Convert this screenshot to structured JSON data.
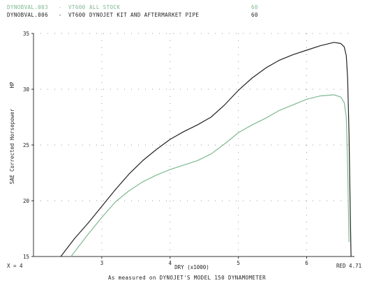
{
  "legend": [
    {
      "file": "DYNOBVAL.003",
      "sep": "-",
      "model": "VT600",
      "desc": "ALL STOCK",
      "code": "60",
      "color": "#7fb892"
    },
    {
      "file": "DYNOBVAL.006",
      "sep": "-",
      "model": "VT600",
      "desc": "DYNOJET KIT AND AFTERMARKET PIPE",
      "code": "60",
      "color": "#222222"
    }
  ],
  "footer": "As measured on DYNOJET'S MODEL 150 DYNAMOMETER",
  "colors": {
    "axis": "#333333",
    "grid": "#9a9a9a",
    "bg": "#ffffff"
  },
  "chart_data": {
    "type": "line",
    "xlabel": "DRY (x1000)",
    "ylabel": "SAE Corrected Horsepower",
    "y_unit_marker": "HP",
    "x_start_label": "X = 4",
    "x_end_label": "RED 4.71",
    "xlim": [
      2,
      6.7
    ],
    "ylim": [
      15,
      35
    ],
    "xticks": [
      3,
      4,
      5,
      6
    ],
    "yticks": [
      15,
      20,
      25,
      30,
      35
    ],
    "grid": true,
    "series": [
      {
        "name": "DYNOBVAL.003 - VT600 ALL STOCK",
        "color": "#7fb892",
        "x": [
          2.55,
          2.8,
          3.0,
          3.2,
          3.4,
          3.6,
          3.8,
          4.0,
          4.2,
          4.4,
          4.6,
          4.8,
          5.0,
          5.2,
          5.4,
          5.6,
          5.8,
          6.0,
          6.2,
          6.4,
          6.5,
          6.55,
          6.58,
          6.6,
          6.62
        ],
        "y": [
          15.0,
          17.0,
          18.5,
          19.9,
          20.9,
          21.7,
          22.3,
          22.8,
          23.2,
          23.6,
          24.2,
          25.1,
          26.1,
          26.8,
          27.4,
          28.1,
          28.6,
          29.1,
          29.4,
          29.5,
          29.3,
          28.8,
          27.5,
          23.0,
          16.3
        ]
      },
      {
        "name": "DYNOBVAL.006 - VT600 DYNOJET KIT AND AFTERMARKET PIPE",
        "color": "#222222",
        "x": [
          2.4,
          2.6,
          2.8,
          3.0,
          3.2,
          3.4,
          3.6,
          3.8,
          4.0,
          4.2,
          4.4,
          4.6,
          4.8,
          5.0,
          5.2,
          5.4,
          5.6,
          5.8,
          6.0,
          6.2,
          6.4,
          6.5,
          6.55,
          6.58,
          6.6,
          6.62,
          6.64,
          6.65
        ],
        "y": [
          15.0,
          16.6,
          18.0,
          19.5,
          21.0,
          22.4,
          23.6,
          24.6,
          25.5,
          26.2,
          26.8,
          27.5,
          28.6,
          29.9,
          31.0,
          31.9,
          32.6,
          33.1,
          33.5,
          33.9,
          34.2,
          34.1,
          33.8,
          33.0,
          31.0,
          26.0,
          18.5,
          15.0
        ]
      }
    ]
  }
}
